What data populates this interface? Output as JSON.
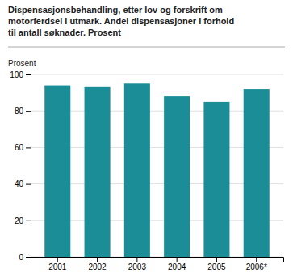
{
  "chart_data": {
    "type": "bar",
    "title": "Dispensasjonsbehandling, etter lov og forskrift om\nmotorferdsel i utmark. Andel dispensasjoner i forhold\ntil antall søknader. Prosent",
    "ylabel": "Prosent",
    "categories": [
      "2001",
      "2002",
      "2003",
      "2004",
      "2005",
      "2006*"
    ],
    "values": [
      94,
      93,
      95,
      88,
      85,
      92
    ],
    "color": "#1a8d96",
    "ylim": [
      0,
      100
    ],
    "yticks": [
      0,
      20,
      40,
      60,
      80,
      100
    ],
    "grid": true
  }
}
